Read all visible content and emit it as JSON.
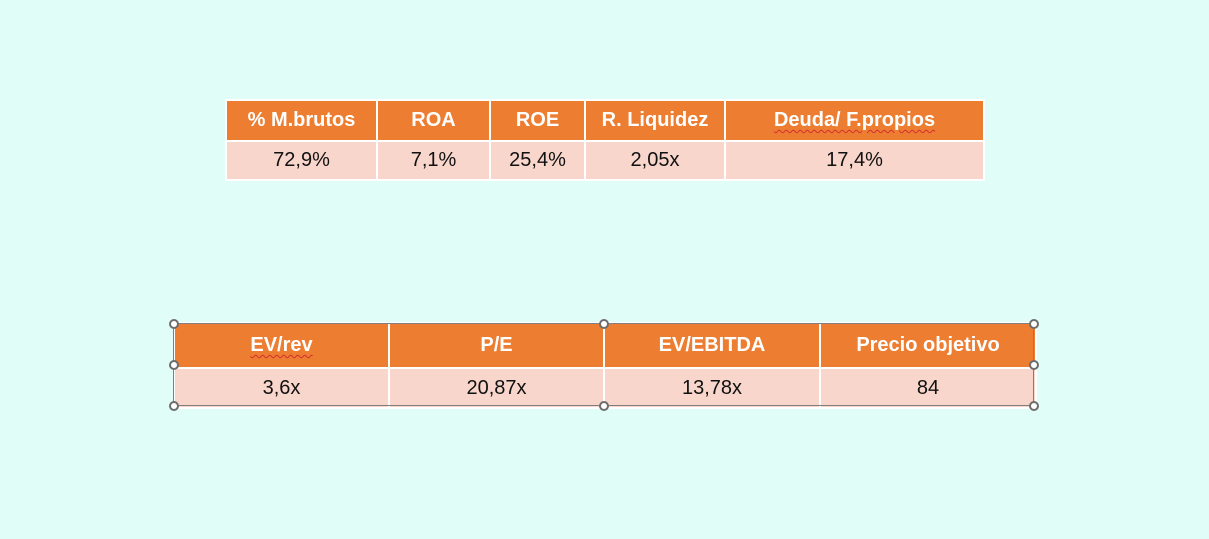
{
  "table_1": {
    "headers": [
      "% M.brutos",
      "ROA",
      "ROE",
      "R. Liquidez",
      "Deuda/ F.propios"
    ],
    "values": [
      "72,9%",
      "7,1%",
      "25,4%",
      "2,05x",
      "17,4%"
    ]
  },
  "table_2": {
    "headers": [
      "EV/rev",
      "P/E",
      "EV/EBITDA",
      "Precio objetivo"
    ],
    "values": [
      "3,6x",
      "20,87x",
      "13,78x",
      "84"
    ]
  },
  "colors": {
    "background": "#e1fdf8",
    "header_fill": "#ed7d31",
    "row_fill": "#f8d6cb",
    "header_text": "#ffffff",
    "spellcheck_underline": "#d32f2f"
  }
}
